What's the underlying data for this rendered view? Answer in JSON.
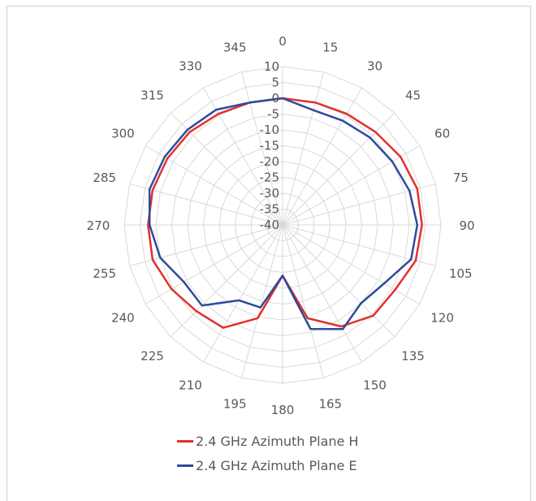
{
  "chart_data": {
    "type": "radar",
    "angles": [
      0,
      15,
      30,
      45,
      60,
      75,
      90,
      105,
      120,
      135,
      150,
      165,
      180,
      195,
      210,
      225,
      240,
      255,
      270,
      285,
      300,
      315,
      330,
      345
    ],
    "angle_labels": [
      "0",
      "15",
      "30",
      "45",
      "60",
      "75",
      "90",
      "105",
      "120",
      "135",
      "150",
      "165",
      "180",
      "195",
      "210",
      "225",
      "240",
      "255",
      "270",
      "285",
      "300",
      "315",
      "330",
      "345"
    ],
    "radial_ticks": [
      10,
      5,
      0,
      -5,
      -10,
      -15,
      -20,
      -25,
      -30,
      -35,
      -40
    ],
    "radial_tick_labels": [
      "10",
      "5",
      "0",
      "-5",
      "-10",
      "-15",
      "-20",
      "-25",
      "-30",
      "-35",
      "-40"
    ],
    "rlim": [
      -40,
      10
    ],
    "grid": true,
    "legend_position": "bottom",
    "series": [
      {
        "name": "2.4 GHz Azimuth Plane H",
        "color": "#e03030",
        "values": [
          0,
          0,
          0.5,
          1.5,
          3,
          4,
          4,
          3.5,
          1,
          0.5,
          -3,
          -9.5,
          -24,
          -9.5,
          -2.5,
          -1.5,
          0.5,
          2.5,
          2.5,
          2.5,
          2,
          1.5,
          0.5,
          0
        ]
      },
      {
        "name": "2.4 GHz Azimuth Plane E",
        "color": "#2e4b9a",
        "values": [
          0,
          -2.5,
          -2,
          -1,
          0,
          1.5,
          2.5,
          2,
          -3,
          -5,
          -2,
          -6,
          -24,
          -13,
          -12.5,
          -4,
          -4,
          0,
          2,
          3.5,
          3,
          2.5,
          2,
          0
        ]
      }
    ]
  }
}
